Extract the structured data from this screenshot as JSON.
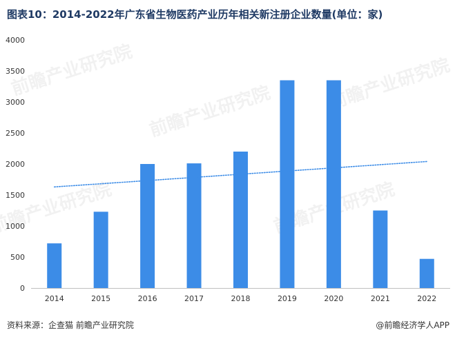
{
  "title": "图表10：2014-2022年广东省生物医药产业历年相关新注册企业数量(单位：家)",
  "source": "资料来源：企查猫 前瞻产业研究院",
  "credit": "@前瞻经济学人APP",
  "watermark": "前瞻产业研究院",
  "colors": {
    "bar": "#3c8ce7",
    "trendline": "#3c8ce7",
    "axis": "#bfbfbf",
    "tick_text": "#333333"
  },
  "chart_data": {
    "type": "bar",
    "categories": [
      "2014",
      "2015",
      "2016",
      "2017",
      "2018",
      "2019",
      "2020",
      "2021",
      "2022"
    ],
    "values": [
      720,
      1230,
      2000,
      2010,
      2200,
      3350,
      3350,
      1250,
      470
    ],
    "ylim": [
      0,
      4000
    ],
    "yticks": [
      "0",
      "500",
      "1000",
      "1500",
      "2000",
      "2500",
      "3000",
      "3500",
      "4000"
    ],
    "grid": false,
    "legend": "none",
    "trendline": {
      "type": "linear",
      "style": "dotted",
      "start": 1630,
      "end": 2040
    }
  }
}
